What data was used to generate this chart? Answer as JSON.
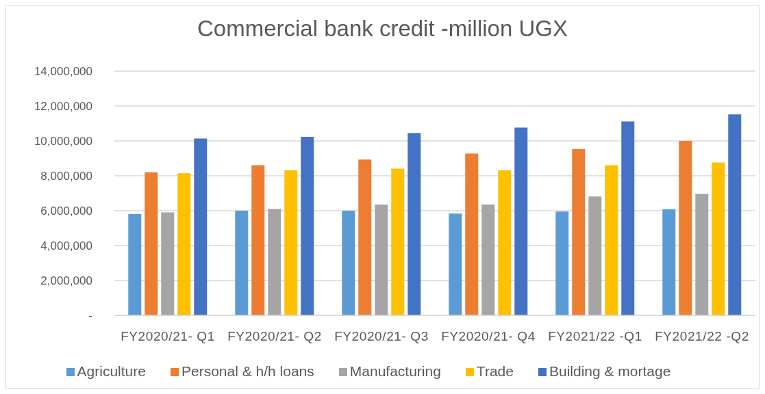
{
  "chart_data": {
    "type": "bar",
    "title": "Commercial bank credit -million UGX",
    "categories": [
      "FY2020/21- Q1",
      "FY2020/21- Q2",
      "FY2020/21- Q3",
      "FY2020/21- Q4",
      "FY2021/22 -Q1",
      "FY2021/22 -Q2"
    ],
    "series": [
      {
        "name": "Agriculture",
        "color": "#5b9bd5",
        "values": [
          5800000,
          6000000,
          6000000,
          5830000,
          5950000,
          6080000
        ]
      },
      {
        "name": "Personal & h/h loans",
        "color": "#ed7d31",
        "values": [
          8200000,
          8610000,
          8930000,
          9270000,
          9530000,
          10000000
        ]
      },
      {
        "name": "Manufacturing",
        "color": "#a5a5a5",
        "values": [
          5900000,
          6100000,
          6350000,
          6350000,
          6810000,
          6960000
        ]
      },
      {
        "name": "Trade",
        "color": "#ffc000",
        "values": [
          8150000,
          8310000,
          8410000,
          8310000,
          8610000,
          8760000
        ]
      },
      {
        "name": "Building & mortage",
        "color": "#4472c4",
        "values": [
          10140000,
          10240000,
          10450000,
          10760000,
          11120000,
          11520000
        ]
      }
    ],
    "ylim": [
      0,
      14000000
    ],
    "yticks": [
      {
        "value": 0,
        "label": "-"
      },
      {
        "value": 2000000,
        "label": "2,000,000"
      },
      {
        "value": 4000000,
        "label": "4,000,000"
      },
      {
        "value": 6000000,
        "label": "6,000,000"
      },
      {
        "value": 8000000,
        "label": "8,000,000"
      },
      {
        "value": 10000000,
        "label": "10,000,000"
      },
      {
        "value": 12000000,
        "label": "12,000,000"
      },
      {
        "value": 14000000,
        "label": "14,000,000"
      }
    ],
    "grid": "y",
    "legend": "bottom"
  }
}
